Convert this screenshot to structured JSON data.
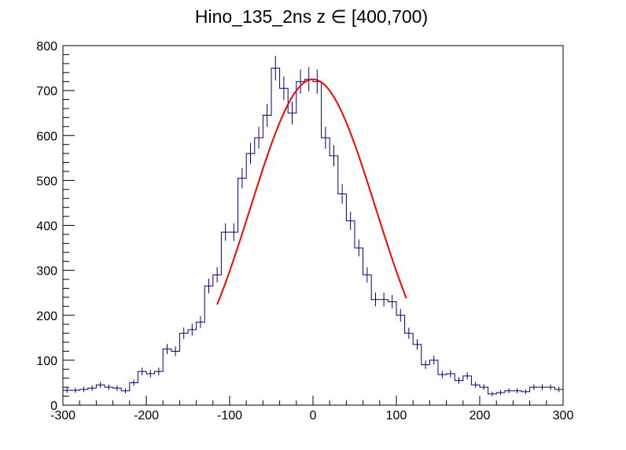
{
  "chart_data": {
    "type": "histogram",
    "title": "Hino_135_2ns z  ∈ [400,700)",
    "xlabel": "",
    "ylabel": "",
    "xlim": [
      -300,
      300
    ],
    "ylim": [
      0,
      800
    ],
    "x_ticks": [
      -300,
      -200,
      -100,
      0,
      100,
      200,
      300
    ],
    "y_ticks": [
      0,
      100,
      200,
      300,
      400,
      500,
      600,
      700,
      800
    ],
    "bin_width": 10,
    "bin_edges_start": -300,
    "series": [
      {
        "name": "histogram",
        "color": "#000080",
        "values": [
          33,
          33,
          35,
          38,
          45,
          40,
          38,
          32,
          50,
          75,
          70,
          75,
          125,
          120,
          160,
          168,
          185,
          265,
          290,
          385,
          385,
          505,
          560,
          595,
          645,
          750,
          705,
          650,
          720,
          725,
          720,
          595,
          555,
          470,
          410,
          350,
          290,
          235,
          235,
          230,
          200,
          160,
          135,
          90,
          100,
          68,
          70,
          55,
          65,
          45,
          40,
          25,
          28,
          32,
          32,
          30,
          40,
          40,
          40,
          35
        ]
      },
      {
        "name": "gaussian fit",
        "color": "#ff0000",
        "type": "line",
        "constant": 725,
        "mean": 0,
        "sigma": 75,
        "range": [
          -115,
          112
        ]
      }
    ]
  }
}
